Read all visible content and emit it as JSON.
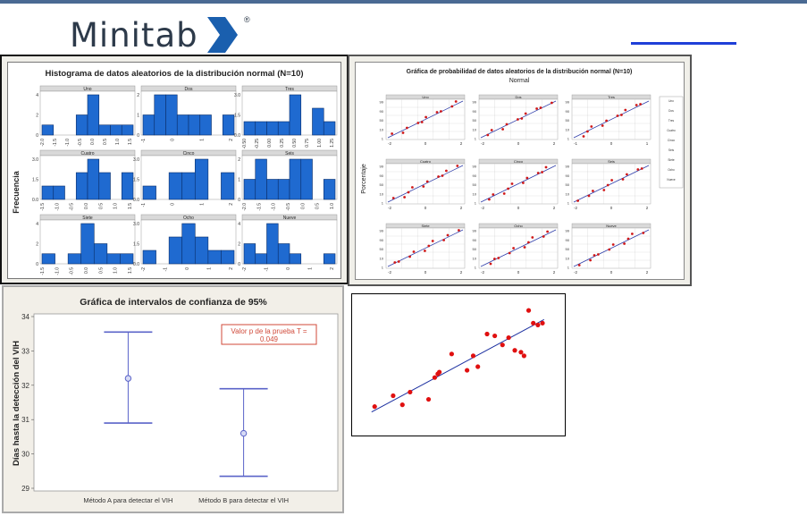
{
  "logo": {
    "text": "Minitab",
    "reg": "®"
  },
  "chart_data": [
    {
      "type": "bar",
      "title": "Histograma de datos aleatorios de la distribución normal (N=10)",
      "ylabel": "Frecuencia",
      "panels": [
        {
          "name": "Uno",
          "values": [
            1,
            0,
            0,
            2,
            4,
            1,
            1,
            1
          ],
          "ymax": 4,
          "yticks": [
            "0",
            "2",
            "4"
          ],
          "xticks": [
            "-2.0",
            "-1.5",
            "-1.0",
            "-0.5",
            "0.0",
            "0.5",
            "1.0",
            "1.5"
          ]
        },
        {
          "name": "Dos",
          "values": [
            1,
            2,
            2,
            1,
            1,
            1,
            0,
            1
          ],
          "ymax": 2,
          "yticks": [
            "0",
            "1",
            "2"
          ],
          "xticks": [
            "-1",
            "0",
            "1",
            "2"
          ]
        },
        {
          "name": "Tres",
          "values": [
            1,
            1,
            1,
            1,
            3,
            0,
            2,
            1
          ],
          "ymax": 3.0,
          "yticks": [
            "0.0",
            "1.5",
            "3.0"
          ],
          "xticks": [
            "-0.50",
            "-0.25",
            "0.00",
            "0.25",
            "0.50",
            "0.75",
            "1.00",
            "1.25"
          ]
        },
        {
          "name": "Cuatro",
          "values": [
            1,
            1,
            0,
            2,
            3,
            2,
            0,
            2
          ],
          "ymax": 3.0,
          "yticks": [
            "0.0",
            "1.5",
            "3.0"
          ],
          "xticks": [
            "-1.5",
            "-1.0",
            "-0.5",
            "0.0",
            "0.5",
            "1.0",
            "1.5"
          ]
        },
        {
          "name": "Cinco",
          "values": [
            1,
            0,
            2,
            2,
            3,
            0,
            2
          ],
          "ymax": 3.0,
          "yticks": [
            "0.0",
            "1.5",
            "3.0"
          ],
          "xticks": [
            "-1",
            "0",
            "1",
            "2"
          ]
        },
        {
          "name": "Seis",
          "values": [
            1,
            2,
            1,
            1,
            2,
            2,
            0,
            1
          ],
          "ymax": 2,
          "yticks": [
            "0",
            "1",
            "2"
          ],
          "xticks": [
            "-2.0",
            "-1.5",
            "-1.0",
            "-0.5",
            "0.0",
            "0.5",
            "1.0"
          ]
        },
        {
          "name": "Siete",
          "values": [
            1,
            0,
            1,
            4,
            2,
            1,
            1
          ],
          "ymax": 4,
          "yticks": [
            "0",
            "2",
            "4"
          ],
          "xticks": [
            "-1.5",
            "-1.0",
            "-0.5",
            "0.0",
            "0.5",
            "1.0",
            "1.5"
          ]
        },
        {
          "name": "Ocho",
          "values": [
            1,
            0,
            2,
            3,
            2,
            1,
            1
          ],
          "ymax": 3.0,
          "yticks": [
            "0.0",
            "1.5",
            "3.0"
          ],
          "xticks": [
            "-2",
            "-1",
            "0",
            "1",
            "2"
          ]
        },
        {
          "name": "Nueve",
          "values": [
            2,
            1,
            4,
            2,
            1,
            0,
            0,
            1
          ],
          "ymax": 4,
          "yticks": [
            "0",
            "2",
            "4"
          ],
          "xticks": [
            "-2",
            "-1",
            "0",
            "1",
            "2"
          ]
        }
      ]
    },
    {
      "type": "scatter",
      "title": "Gráfica de probabilidad de datos aleatorios de la distribución normal (N=10)",
      "subtitle": "Normal",
      "ylabel": "Porcentaje",
      "yticks": [
        "99",
        "90",
        "50",
        "10",
        "1"
      ],
      "panels": [
        {
          "name": "Uno",
          "xlim": [
            -2,
            2
          ],
          "xticks": [
            "-2",
            "0",
            "2"
          ]
        },
        {
          "name": "Dos",
          "xlim": [
            -2,
            2
          ],
          "xticks": [
            "-2",
            "0",
            "2"
          ]
        },
        {
          "name": "Tres",
          "xlim": [
            -1,
            1
          ],
          "xticks": [
            "-1",
            "0",
            "1"
          ]
        },
        {
          "name": "Cuatro",
          "xlim": [
            -2,
            2
          ],
          "xticks": [
            "-2",
            "0",
            "2"
          ]
        },
        {
          "name": "Cinco",
          "xlim": [
            -2,
            2
          ],
          "xticks": [
            "-2",
            "0",
            "2"
          ]
        },
        {
          "name": "Seis",
          "xlim": [
            -2,
            2
          ],
          "xticks": [
            "-2",
            "0",
            "2"
          ]
        },
        {
          "name": "Siete",
          "xlim": [
            -2,
            2
          ],
          "xticks": [
            "-2",
            "0",
            "2"
          ]
        },
        {
          "name": "Ocho",
          "xlim": [
            -2,
            2
          ],
          "xticks": [
            "-2",
            "0",
            "2"
          ]
        },
        {
          "name": "Nueve",
          "xlim": [
            -2,
            2
          ],
          "xticks": [
            "-2",
            "0",
            "2"
          ]
        }
      ],
      "legend": [
        "Uno",
        "Dos",
        "Tres",
        "Cuatro",
        "Cinco",
        "Seis",
        "Siete",
        "Ocho",
        "Nueve"
      ]
    },
    {
      "type": "errorbar",
      "title": "Gráfica de intervalos de confianza de 95%",
      "ylabel": "Días hasta la detección del VIH",
      "ylim": [
        29,
        34
      ],
      "yticks": [
        "29",
        "30",
        "31",
        "32",
        "33",
        "34"
      ],
      "categories": [
        "Método A para detectar el VIH",
        "Método B para detectar el VIH"
      ],
      "means": [
        32.2,
        30.6
      ],
      "lower": [
        30.9,
        29.35
      ],
      "upper": [
        33.55,
        31.9
      ],
      "annotation": "Valor p de la prueba T = 0.049"
    },
    {
      "type": "scatter",
      "x": [
        1,
        2.2,
        2.8,
        3.3,
        4.5,
        4.9,
        5.1,
        5.2,
        6.0,
        7.0,
        7.4,
        7.7,
        8.3,
        8.8,
        9.3,
        9.7,
        10.1,
        10.5,
        10.7,
        11.0,
        11.3,
        11.6,
        11.9
      ],
      "y": [
        1.2,
        1.8,
        1.3,
        2.0,
        1.6,
        2.8,
        3.0,
        3.1,
        4.1,
        3.2,
        4.0,
        3.4,
        5.2,
        5.1,
        4.6,
        5.0,
        4.3,
        4.2,
        4.0,
        6.5,
        5.8,
        5.7,
        5.8
      ],
      "fit": [
        [
          0.8,
          0.9
        ],
        [
          12.0,
          6.0
        ]
      ]
    }
  ]
}
